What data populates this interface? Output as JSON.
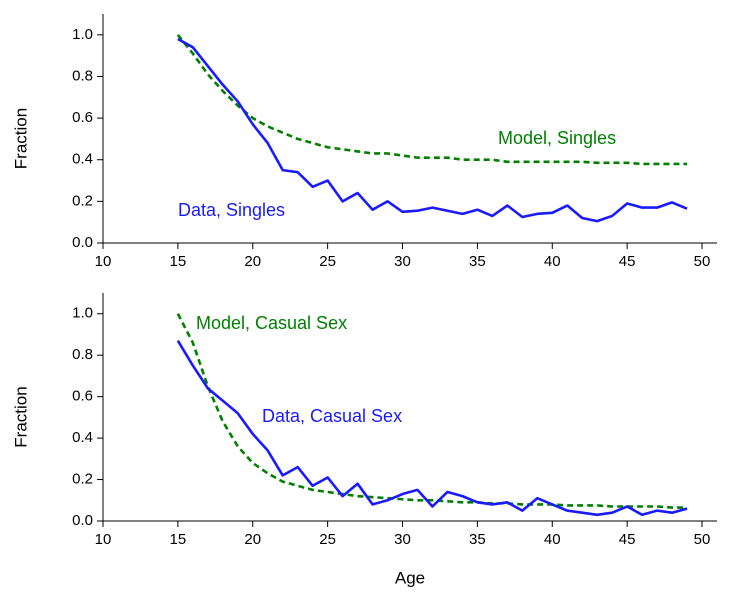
{
  "chart_data": [
    {
      "type": "line",
      "ylabel": "Fraction",
      "x": [
        15,
        16,
        17,
        18,
        19,
        20,
        21,
        22,
        23,
        24,
        25,
        26,
        27,
        28,
        29,
        30,
        31,
        32,
        33,
        34,
        35,
        36,
        37,
        38,
        39,
        40,
        41,
        42,
        43,
        44,
        45,
        46,
        47,
        48,
        49
      ],
      "xlim": [
        10,
        51
      ],
      "xticks": [
        10,
        15,
        20,
        25,
        30,
        35,
        40,
        45,
        50
      ],
      "ylim": [
        0,
        1.1
      ],
      "yticks": [
        {
          "value": 0,
          "label": "0.0"
        },
        0.2,
        0.4,
        0.6,
        0.8,
        {
          "value": 1,
          "label": "1.0"
        }
      ],
      "series": [
        {
          "name": "Model, Singles",
          "color": "#008000",
          "dashed": true,
          "values": [
            1.0,
            0.91,
            0.81,
            0.73,
            0.66,
            0.6,
            0.56,
            0.53,
            0.5,
            0.48,
            0.46,
            0.45,
            0.44,
            0.43,
            0.43,
            0.42,
            0.41,
            0.41,
            0.41,
            0.4,
            0.4,
            0.4,
            0.39,
            0.39,
            0.39,
            0.39,
            0.39,
            0.39,
            0.385,
            0.385,
            0.385,
            0.38,
            0.38,
            0.38,
            0.38
          ]
        },
        {
          "name": "Data, Singles",
          "color": "#1a1aff",
          "dashed": false,
          "values": [
            0.98,
            0.94,
            0.85,
            0.76,
            0.68,
            0.57,
            0.48,
            0.35,
            0.34,
            0.27,
            0.3,
            0.2,
            0.24,
            0.16,
            0.2,
            0.15,
            0.155,
            0.17,
            0.155,
            0.14,
            0.16,
            0.13,
            0.18,
            0.125,
            0.14,
            0.145,
            0.18,
            0.12,
            0.105,
            0.13,
            0.19,
            0.17,
            0.17,
            0.195,
            0.165
          ]
        }
      ]
    },
    {
      "type": "line",
      "ylabel": "Fraction",
      "xlabel": "Age",
      "x": [
        15,
        16,
        17,
        18,
        19,
        20,
        21,
        22,
        23,
        24,
        25,
        26,
        27,
        28,
        29,
        30,
        31,
        32,
        33,
        34,
        35,
        36,
        37,
        38,
        39,
        40,
        41,
        42,
        43,
        44,
        45,
        46,
        47,
        48,
        49
      ],
      "xlim": [
        10,
        51
      ],
      "xticks": [
        10,
        15,
        20,
        25,
        30,
        35,
        40,
        45,
        50
      ],
      "ylim": [
        0,
        1.1
      ],
      "yticks": [
        {
          "value": 0,
          "label": "0.0"
        },
        0.2,
        0.4,
        0.6,
        0.8,
        {
          "value": 1,
          "label": "1.0"
        }
      ],
      "series": [
        {
          "name": "Model, Casual Sex",
          "color": "#008000",
          "dashed": true,
          "values": [
            1.0,
            0.86,
            0.65,
            0.48,
            0.36,
            0.28,
            0.23,
            0.19,
            0.17,
            0.15,
            0.14,
            0.13,
            0.12,
            0.115,
            0.11,
            0.105,
            0.1,
            0.1,
            0.095,
            0.09,
            0.09,
            0.085,
            0.085,
            0.08,
            0.08,
            0.08,
            0.075,
            0.075,
            0.075,
            0.07,
            0.07,
            0.07,
            0.07,
            0.065,
            0.065
          ]
        },
        {
          "name": "Data, Casual Sex",
          "color": "#1a1aff",
          "dashed": false,
          "values": [
            0.87,
            0.75,
            0.64,
            0.58,
            0.52,
            0.42,
            0.34,
            0.22,
            0.26,
            0.17,
            0.21,
            0.12,
            0.18,
            0.08,
            0.1,
            0.13,
            0.15,
            0.07,
            0.14,
            0.12,
            0.09,
            0.08,
            0.09,
            0.05,
            0.11,
            0.08,
            0.05,
            0.04,
            0.03,
            0.04,
            0.07,
            0.03,
            0.05,
            0.04,
            0.06
          ]
        }
      ]
    }
  ]
}
